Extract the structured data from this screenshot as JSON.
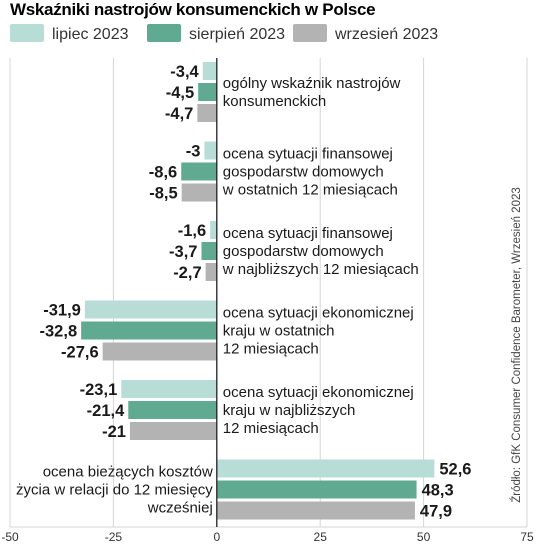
{
  "chart_data": {
    "type": "bar",
    "orientation": "horizontal",
    "title": "Wskaźniki nastrojów konsumenckich w Polsce",
    "source": "Źródło: GfK Consumer Confidence Barometer, Wrzesień 2023",
    "xlim": [
      -50,
      75
    ],
    "xticks": [
      -50,
      -25,
      0,
      25,
      50,
      75
    ],
    "grid": true,
    "legend_position": "top",
    "series": [
      {
        "name": "lipiec 2023",
        "color": "#b7ddd6",
        "values": [
          -3.4,
          -3.0,
          -1.6,
          -31.9,
          -23.1,
          52.6
        ]
      },
      {
        "name": "sierpień 2023",
        "color": "#5faa91",
        "values": [
          -4.5,
          -8.6,
          -3.7,
          -32.8,
          -21.4,
          48.3
        ]
      },
      {
        "name": "wrzesień 2023",
        "color": "#b3b3b3",
        "values": [
          -4.7,
          -8.5,
          -2.7,
          -27.6,
          -21.0,
          47.9
        ]
      }
    ],
    "categories": [
      [
        "ogólny wskaźnik nastrojów",
        "konsumenckich"
      ],
      [
        "ocena sytuacji finansowej",
        "gospodarstw domowych",
        "w ostatnich 12 miesiącach"
      ],
      [
        "ocena sytuacji finansowej",
        "gospodarstw domowych",
        "w najbliższych 12 miesiącach"
      ],
      [
        "ocena sytuacji ekonomicznej",
        "kraju w ostatnich",
        "12 miesiącach"
      ],
      [
        "ocena sytuacji ekonomicznej",
        "kraju w najbliższych",
        "12 miesiącach"
      ],
      [
        "ocena bieżących kosztów",
        "życia w relacji do 12 miesięcy",
        "wcześniej"
      ]
    ]
  }
}
